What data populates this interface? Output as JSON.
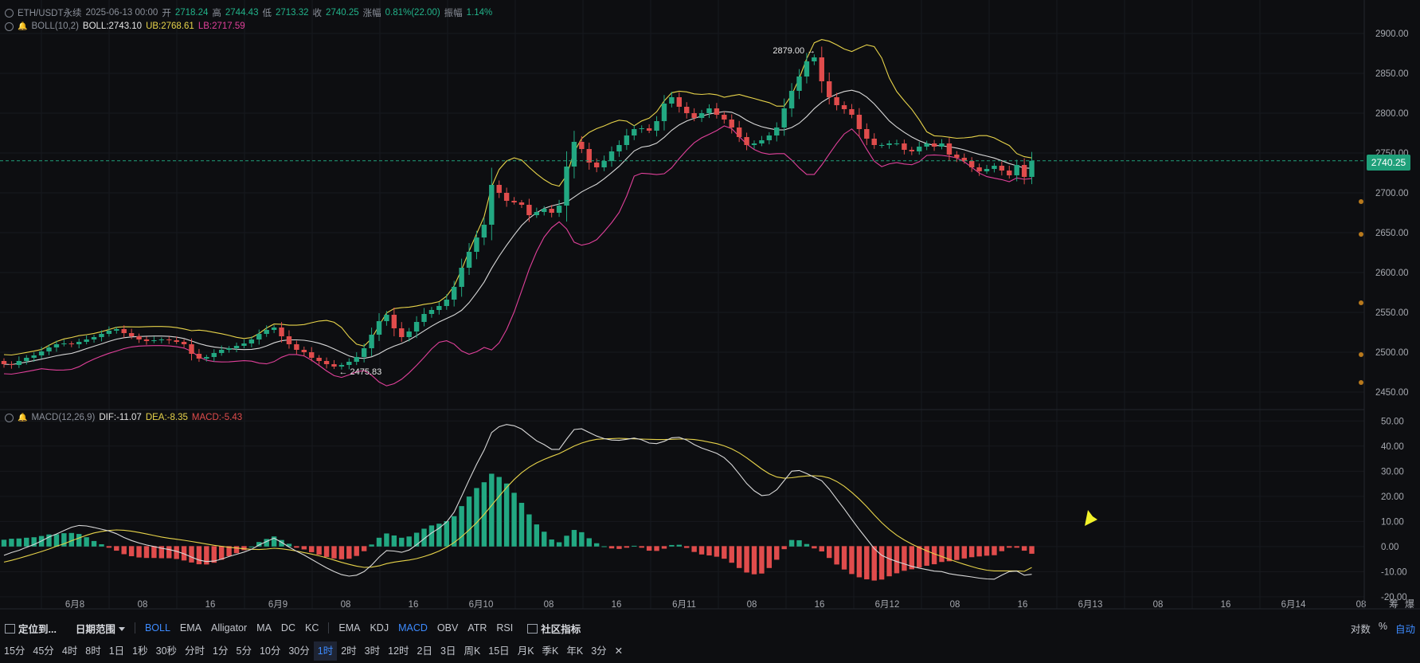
{
  "legend_main": {
    "symbol": "ETH/USDT永续",
    "date": "2025-06-13 00:00",
    "open_label": "开",
    "open": "2718.24",
    "high_label": "高",
    "high": "2744.43",
    "low_label": "低",
    "low": "2713.32",
    "close_label": "收",
    "close": "2740.25",
    "change_label": "涨幅",
    "change": "0.81%(22.00)",
    "amp_label": "振幅",
    "amp": "1.14%"
  },
  "legend_boll": {
    "name": "BOLL(10,2)",
    "mid": "BOLL:2743.10",
    "ub": "UB:2768.61",
    "lb": "LB:2717.59"
  },
  "legend_macd": {
    "name": "MACD(12,26,9)",
    "dif": "DIF:-11.07",
    "dea": "DEA:-8.35",
    "macd": "MACD:-5.43"
  },
  "last_price_tag": "2740.25",
  "annotations": {
    "high_label": "2879.00",
    "low_label": "2475.83"
  },
  "colors": {
    "up": "#22a882",
    "down": "#e04c4c",
    "boll_mid": "#d9d9d9",
    "boll_ub": "#e7d34a",
    "boll_lb": "#e0409a",
    "dif": "#d9d9d9",
    "dea": "#e7d34a",
    "arrow": "#f2f22a",
    "accent": "#3d8bff"
  },
  "chart_data": [
    {
      "type": "candlestick",
      "title": "ETH/USDT永续",
      "interval": "1时",
      "ylim": [
        2440,
        2910
      ],
      "yticks": [
        "2900.00",
        "2850.00",
        "2800.00",
        "2750.00",
        "2700.00",
        "2650.00",
        "2600.00",
        "2550.00",
        "2500.00",
        "2450.00"
      ],
      "xticks": [
        "6月8",
        "08",
        "16",
        "6月9",
        "08",
        "16",
        "6月10",
        "08",
        "16",
        "6月11",
        "08",
        "16",
        "6月12",
        "08",
        "16",
        "6月13",
        "08",
        "16",
        "6月14",
        "08"
      ],
      "last_price": 2740.25,
      "annotations": [
        {
          "text": "2879.00",
          "value": 2879.0
        },
        {
          "text": "2475.83",
          "value": 2475.83
        }
      ],
      "close": [
        2485,
        2484,
        2489,
        2493,
        2496,
        2501,
        2506,
        2510,
        2511,
        2510,
        2513,
        2516,
        2519,
        2523,
        2527,
        2529,
        2524,
        2520,
        2516,
        2514,
        2515,
        2516,
        2515,
        2513,
        2510,
        2498,
        2492,
        2494,
        2499,
        2503,
        2505,
        2508,
        2511,
        2516,
        2523,
        2528,
        2531,
        2520,
        2510,
        2503,
        2500,
        2493,
        2489,
        2485,
        2482,
        2484,
        2488,
        2494,
        2505,
        2522,
        2539,
        2547,
        2530,
        2519,
        2526,
        2538,
        2548,
        2553,
        2558,
        2566,
        2582,
        2606,
        2626,
        2644,
        2660,
        2710,
        2700,
        2690,
        2688,
        2685,
        2672,
        2676,
        2680,
        2675,
        2684,
        2733,
        2764,
        2755,
        2738,
        2732,
        2740,
        2752,
        2760,
        2772,
        2780,
        2781,
        2778,
        2790,
        2812,
        2820,
        2808,
        2800,
        2794,
        2800,
        2806,
        2798,
        2792,
        2782,
        2770,
        2760,
        2762,
        2766,
        2772,
        2782,
        2806,
        2828,
        2846,
        2865,
        2870,
        2840,
        2820,
        2810,
        2805,
        2798,
        2780,
        2768,
        2760,
        2760,
        2762,
        2762,
        2754,
        2752,
        2758,
        2762,
        2758,
        2762,
        2748,
        2744,
        2740,
        2732,
        2727,
        2730,
        2734,
        2728,
        2722,
        2735,
        2720,
        2740.25
      ],
      "bollinger": {
        "period": 10,
        "k": 2,
        "mid_last": 2743.1,
        "ub_last": 2768.61,
        "lb_last": 2717.59
      },
      "y_right_markers": [
        2689,
        2648,
        2562,
        2497,
        2462
      ]
    },
    {
      "type": "bar+line",
      "title": "MACD(12,26,9)",
      "ylim": [
        -21,
        52
      ],
      "yticks": [
        "50.00",
        "40.00",
        "30.00",
        "20.00",
        "10.00",
        "0.00",
        "-10.00",
        "-20.00"
      ],
      "dif_last": -11.07,
      "dea_last": -8.35,
      "macd_last": -5.43,
      "dif": [
        -3.5,
        -2.4,
        -1.5,
        -0.3,
        0.8,
        2.2,
        3.8,
        5.0,
        6.4,
        7.7,
        8.4,
        8.2,
        7.6,
        6.9,
        6.2,
        5.1,
        3.6,
        2.4,
        1.4,
        0.6,
        0.0,
        -0.7,
        -1.2,
        -1.9,
        -2.9,
        -4.2,
        -5.4,
        -6.0,
        -5.8,
        -5.0,
        -4.0,
        -3.1,
        -2.2,
        -1.1,
        0.6,
        2.0,
        3.3,
        1.7,
        -0.2,
        -1.9,
        -3.4,
        -5.1,
        -6.8,
        -8.5,
        -10.0,
        -11.2,
        -11.8,
        -11.4,
        -10.0,
        -7.4,
        -4.2,
        -1.6,
        -1.8,
        -2.3,
        -1.4,
        0.7,
        3.1,
        5.4,
        7.3,
        9.8,
        13.7,
        20.0,
        26.5,
        32.8,
        38.4,
        45.4,
        47.7,
        48.6,
        48.1,
        46.8,
        44.4,
        42.1,
        40.6,
        38.7,
        38.7,
        42.8,
        46.6,
        46.9,
        45.4,
        44.0,
        43.0,
        42.4,
        42.3,
        42.7,
        43.2,
        42.5,
        41.2,
        41.0,
        41.9,
        43.3,
        43.5,
        42.4,
        40.6,
        39.2,
        38.2,
        37.1,
        35.4,
        32.6,
        28.9,
        25.1,
        22.2,
        20.3,
        20.6,
        22.6,
        26.3,
        30.0,
        30.3,
        29.1,
        27.6,
        26.2,
        22.9,
        18.9,
        15.0,
        10.8,
        6.8,
        3.0,
        -0.8,
        -3.5,
        -4.9,
        -6.0,
        -6.9,
        -7.9,
        -8.6,
        -9.2,
        -9.8,
        -10.0,
        -10.8,
        -11.3,
        -11.7,
        -12.1,
        -12.6,
        -12.9,
        -13.0,
        -11.4,
        -10.0,
        -9.8,
        -11.4,
        -11.07
      ],
      "dea": [
        -6.2,
        -5.5,
        -4.7,
        -3.8,
        -2.9,
        -2.0,
        -1.0,
        0.1,
        1.1,
        2.3,
        3.4,
        4.5,
        5.4,
        6.0,
        6.4,
        6.6,
        6.5,
        6.1,
        5.6,
        5.0,
        4.4,
        3.8,
        3.3,
        2.9,
        2.5,
        2.0,
        1.5,
        1.0,
        0.5,
        0.1,
        -0.3,
        -0.6,
        -0.9,
        -1.1,
        -1.2,
        -1.0,
        -0.7,
        -0.9,
        -1.3,
        -1.8,
        -2.4,
        -3.0,
        -3.7,
        -4.5,
        -5.4,
        -6.3,
        -7.1,
        -7.8,
        -8.3,
        -8.2,
        -7.7,
        -6.8,
        -6.2,
        -5.8,
        -5.4,
        -4.8,
        -4.0,
        -3.0,
        -1.8,
        -0.3,
        1.6,
        3.9,
        6.6,
        9.5,
        12.8,
        16.4,
        20.0,
        23.5,
        26.7,
        29.4,
        31.6,
        33.3,
        34.7,
        35.9,
        37.0,
        38.5,
        40.0,
        41.2,
        42.1,
        42.7,
        42.9,
        43.0,
        43.1,
        43.0,
        42.9,
        42.8,
        42.7,
        42.6,
        42.6,
        42.7,
        42.8,
        42.8,
        42.6,
        42.2,
        41.6,
        41.0,
        40.1,
        38.9,
        37.3,
        35.3,
        33.1,
        30.9,
        29.0,
        27.7,
        27.2,
        27.4,
        27.8,
        28.1,
        28.2,
        28.0,
        27.3,
        25.9,
        24.0,
        21.6,
        18.9,
        15.9,
        12.6,
        9.5,
        6.8,
        4.5,
        2.6,
        1.0,
        -0.4,
        -1.7,
        -2.9,
        -4.0,
        -5.1,
        -6.1,
        -7.1,
        -8.0,
        -8.8,
        -9.4,
        -9.7,
        -9.7,
        -9.7,
        -9.7,
        -9.9,
        -8.35
      ],
      "macd": [
        -5.43
      ]
    }
  ],
  "toolbar1": {
    "locate": "定位到...",
    "date_range": "日期范围",
    "indicators_main": [
      "BOLL",
      "EMA",
      "Alligator",
      "MA",
      "DC",
      "KC"
    ],
    "indicators_sub": [
      "EMA",
      "KDJ",
      "MACD",
      "OBV",
      "ATR",
      "RSI"
    ],
    "community": "社区指标",
    "right": [
      "对数",
      "%",
      "自动"
    ]
  },
  "toolbar2": {
    "intervals": [
      "15分",
      "45分",
      "4时",
      "8时",
      "1日",
      "1秒",
      "30秒",
      "分时",
      "1分",
      "5分",
      "10分",
      "30分",
      "1时",
      "2时",
      "3时",
      "12时",
      "2日",
      "3日",
      "周K",
      "15日",
      "月K",
      "季K",
      "年K",
      "3分"
    ],
    "selected": "1时"
  },
  "corner": {
    "a": "筹",
    "b": "爆"
  }
}
